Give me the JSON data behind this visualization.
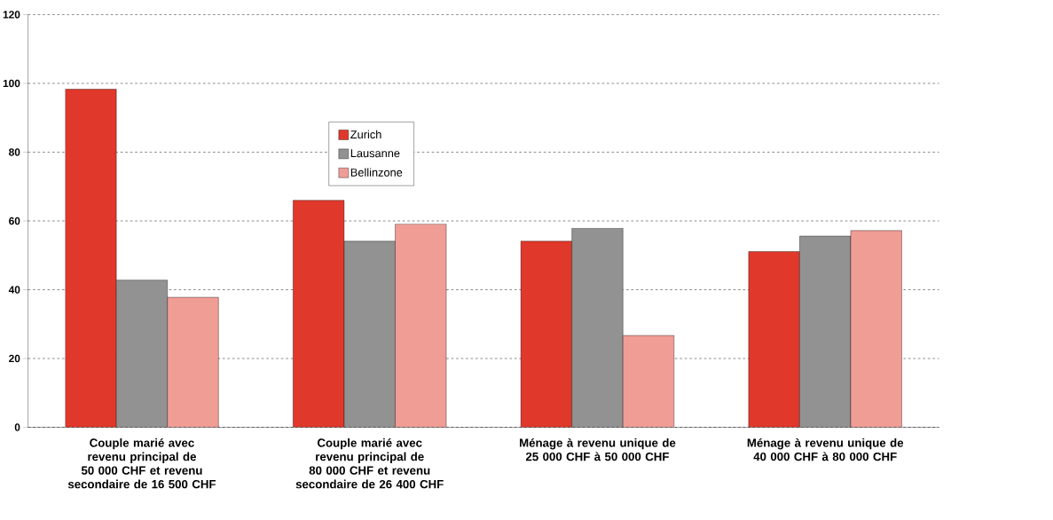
{
  "chart_data": {
    "type": "bar",
    "categories": [
      "Couple marié avec revenu principal de 50 000 CHF et revenu secondaire de 16 500 CHF",
      "Couple marié avec revenu principal de 80 000 CHF et revenu secondaire de 26 400 CHF",
      "Ménage à revenu unique de 25 000 CHF à 50 000 CHF",
      "Ménage à revenu unique de 40 000 CHF à 80 000 CHF"
    ],
    "series": [
      {
        "name": "Zurich",
        "color": "#e0382b",
        "values": [
          98.3,
          66.0,
          54.1,
          51.1
        ]
      },
      {
        "name": "Lausanne",
        "color": "#929292",
        "values": [
          42.8,
          54.1,
          57.9,
          55.6
        ]
      },
      {
        "name": "Bellinzone",
        "color": "#f09d96",
        "values": [
          37.8,
          59.1,
          26.7,
          57.2
        ]
      }
    ],
    "ylim": [
      0,
      120
    ],
    "yticks": [
      0,
      20,
      40,
      60,
      80,
      100,
      120
    ],
    "grid": "y",
    "legend": "top"
  }
}
